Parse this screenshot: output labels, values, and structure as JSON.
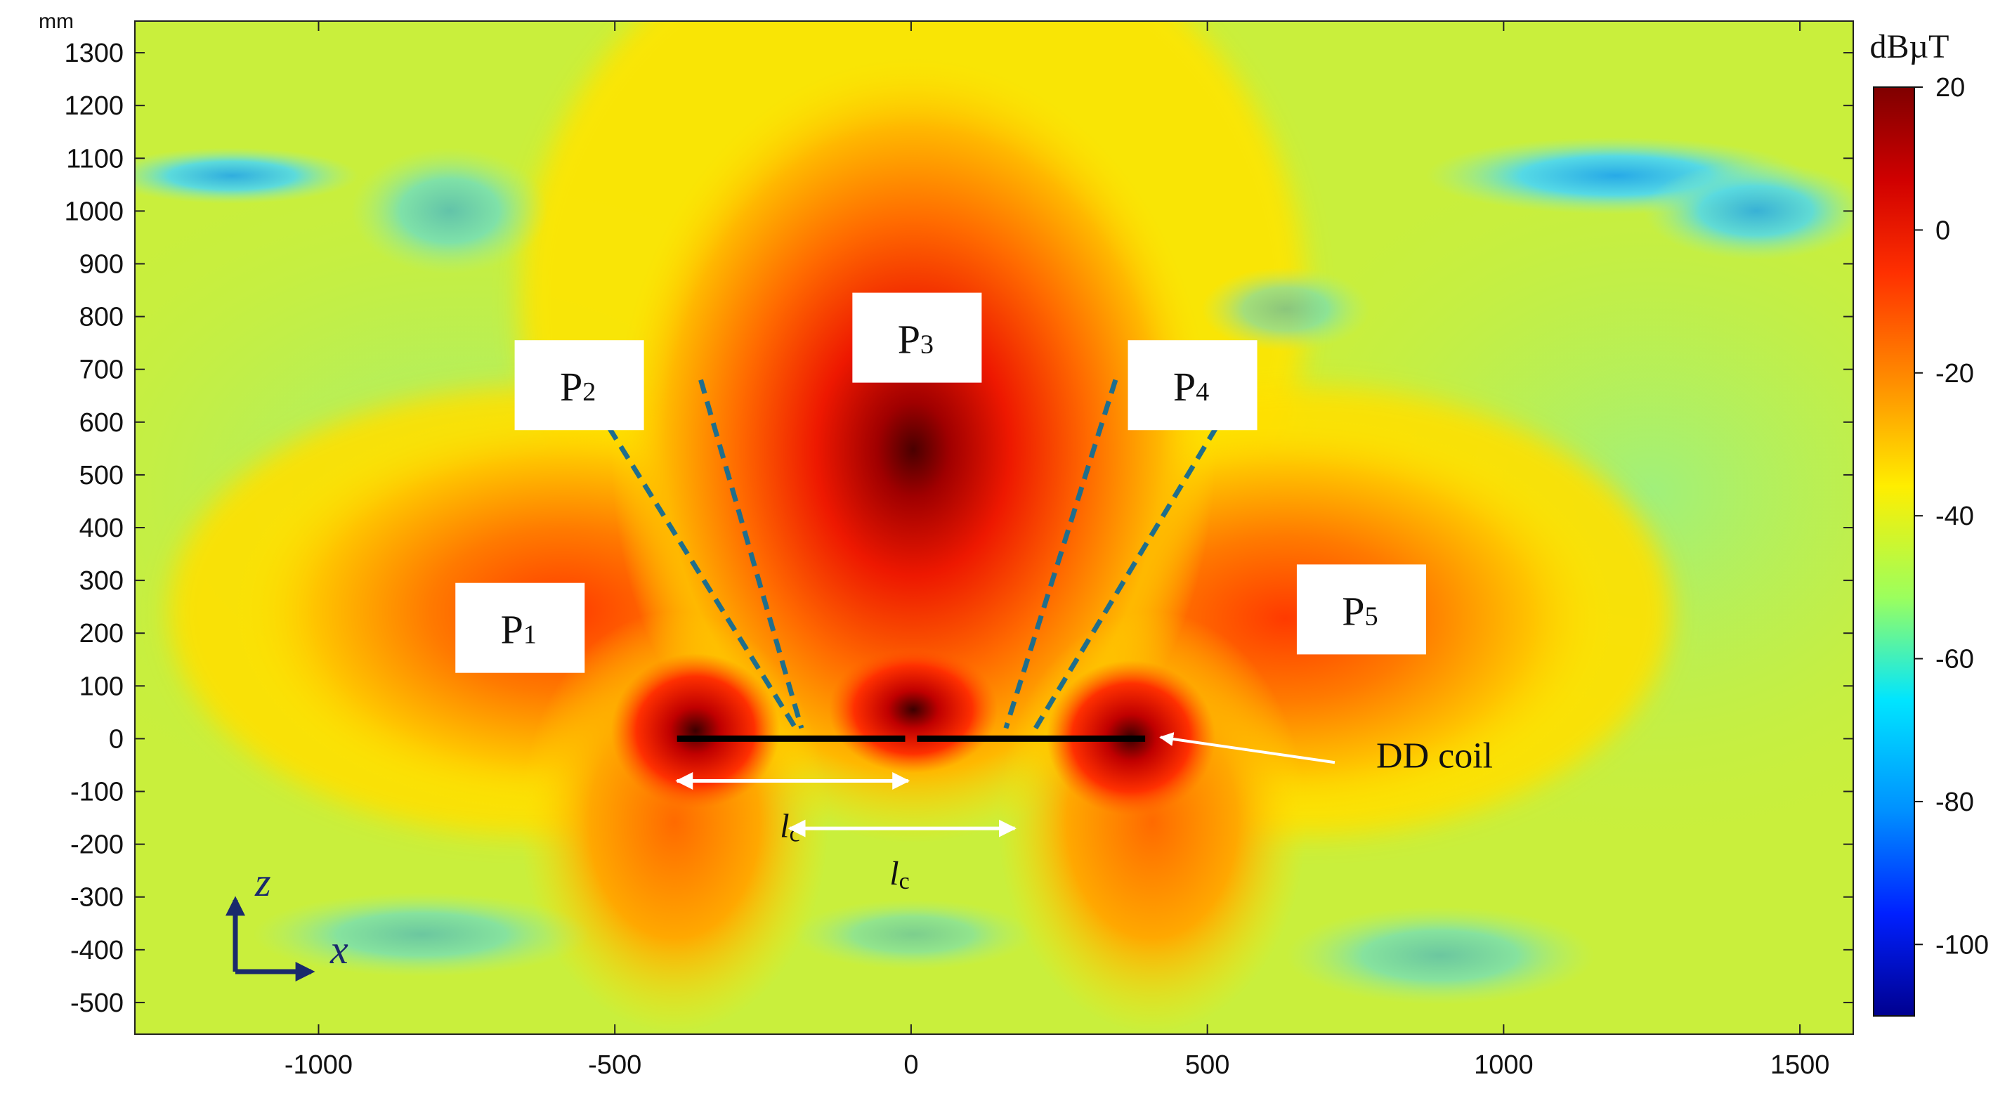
{
  "chart_data": {
    "type": "heatmap",
    "x_unit": "mm",
    "x_ticks": [
      -1000,
      -500,
      0,
      500,
      1000,
      1500
    ],
    "xlim": [
      -1310,
      1590
    ],
    "y_ticks": [
      -500,
      -400,
      -300,
      -200,
      -100,
      0,
      100,
      200,
      300,
      400,
      500,
      600,
      700,
      800,
      900,
      1000,
      1100,
      1200,
      1300
    ],
    "ylim": [
      -560,
      1360
    ],
    "y_unit_label": "mm",
    "colorbar": {
      "title": "dBµT",
      "ticks": [
        20,
        0,
        -20,
        -40,
        -60,
        -80,
        -100
      ],
      "range": [
        -110,
        20
      ],
      "colormap": "jet"
    },
    "coil": {
      "label": "DD coil",
      "segments": [
        [
          -395,
          -10
        ],
        [
          10,
          395
        ]
      ],
      "z": 0,
      "color": "#000000"
    },
    "regions": [
      {
        "label_main": "P",
        "label_sub": "1",
        "x": -660,
        "z": 210
      },
      {
        "label_main": "P",
        "label_sub": "2",
        "x": -560,
        "z": 670
      },
      {
        "label_main": "P",
        "label_sub": "3",
        "x": 10,
        "z": 760
      },
      {
        "label_main": "P",
        "label_sub": "4",
        "x": 475,
        "z": 670
      },
      {
        "label_main": "P",
        "label_sub": "5",
        "x": 760,
        "z": 245
      }
    ],
    "boundary_lines": [
      {
        "x1": -510,
        "z1": 590,
        "x2": -195,
        "z2": 20
      },
      {
        "x1": -355,
        "z1": 680,
        "x2": -185,
        "z2": 20
      },
      {
        "x1": 345,
        "z1": 680,
        "x2": 160,
        "z2": 20
      },
      {
        "x1": 515,
        "z1": 590,
        "x2": 210,
        "z2": 20
      }
    ],
    "dimension_arrows": [
      {
        "label": "lc",
        "x1": -395,
        "x2": -5,
        "z": -80
      },
      {
        "label": "lc",
        "x1": -205,
        "x2": 175,
        "z": -170
      }
    ],
    "axis_indicator": {
      "vertical": "z",
      "horizontal": "x"
    },
    "colors": {
      "boundary_line": "#1f6e8c",
      "annotation_arrow": "#ffffff",
      "axis_indicator": "#1a2a6c"
    }
  }
}
